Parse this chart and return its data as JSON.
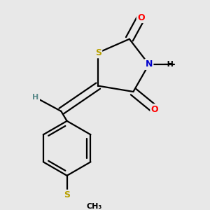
{
  "background_color": "#e8e8e8",
  "atom_colors": {
    "S": "#b8a000",
    "N": "#0000cc",
    "O": "#ff0000",
    "C": "#000000",
    "H": "#5a8a8a"
  },
  "bond_color": "#000000",
  "bond_width": 1.6,
  "figsize": [
    3.0,
    3.0
  ],
  "dpi": 100
}
